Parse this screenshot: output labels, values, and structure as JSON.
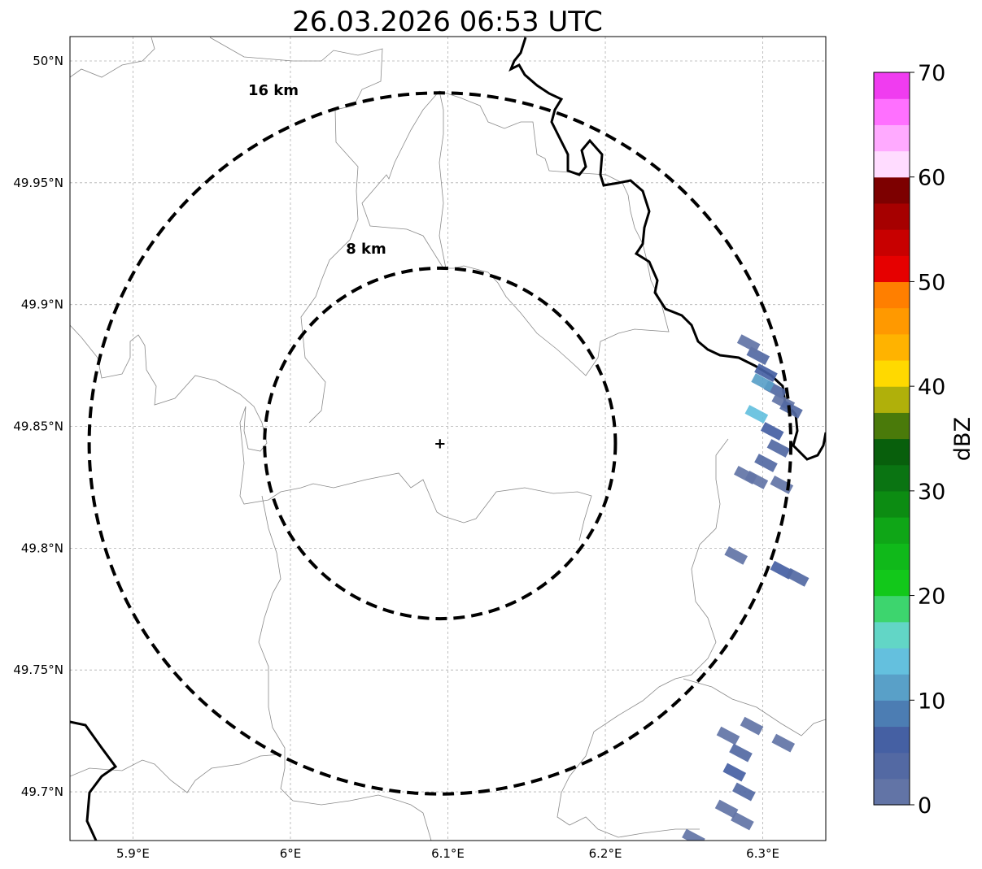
{
  "title": "26.03.2026 06:53 UTC",
  "map": {
    "lon_range": [
      5.86,
      6.34
    ],
    "lat_range": [
      49.68,
      50.01
    ],
    "radar_site": {
      "lon": 6.095,
      "lat": 49.843
    },
    "x_ticks": [
      {
        "value": 5.9,
        "label": "5.9°E"
      },
      {
        "value": 6.0,
        "label": "6°E"
      },
      {
        "value": 6.1,
        "label": "6.1°E"
      },
      {
        "value": 6.2,
        "label": "6.2°E"
      },
      {
        "value": 6.3,
        "label": "6.3°E"
      }
    ],
    "y_ticks": [
      {
        "value": 50.0,
        "label": "50°N"
      },
      {
        "value": 49.95,
        "label": "49.95°N"
      },
      {
        "value": 49.9,
        "label": "49.9°N"
      },
      {
        "value": 49.85,
        "label": "49.85°N"
      },
      {
        "value": 49.8,
        "label": "49.8°N"
      },
      {
        "value": 49.75,
        "label": "49.75°N"
      },
      {
        "value": 49.7,
        "label": "49.7°N"
      }
    ],
    "range_rings": [
      {
        "radius_km": 16,
        "label": "16 km"
      },
      {
        "radius_km": 8,
        "label": "8 km"
      }
    ]
  },
  "colorbar": {
    "label": "dBZ",
    "min": 0,
    "max": 70,
    "ticks": [
      "0",
      "10",
      "20",
      "30",
      "40",
      "50",
      "60",
      "70"
    ],
    "colors": [
      "#6274a6",
      "#5369a3",
      "#4560a3",
      "#4c7db3",
      "#59a0c8",
      "#64c0de",
      "#62d6c6",
      "#3dd56e",
      "#12c81a",
      "#10b91a",
      "#0fa617",
      "#0c8c12",
      "#0a7412",
      "#085f0c",
      "#4a7a0a",
      "#b0b00a",
      "#ffd900",
      "#ffb300",
      "#ff9900",
      "#ff7f00",
      "#e60000",
      "#c80000",
      "#a60000",
      "#7d0000",
      "#ffdcff",
      "#ffaaff",
      "#ff70ff",
      "#f03cf0"
    ]
  },
  "echoes": [
    {
      "lon": 6.297,
      "lat": 49.879,
      "dbz": 3
    },
    {
      "lon": 6.302,
      "lat": 49.872,
      "dbz": 6
    },
    {
      "lon": 6.308,
      "lat": 49.865,
      "dbz": 4
    },
    {
      "lon": 6.3,
      "lat": 49.868,
      "dbz": 12
    },
    {
      "lon": 6.313,
      "lat": 49.86,
      "dbz": 2
    },
    {
      "lon": 6.291,
      "lat": 49.884,
      "dbz": 2
    },
    {
      "lon": 6.318,
      "lat": 49.857,
      "dbz": 3
    },
    {
      "lon": 6.296,
      "lat": 49.855,
      "dbz": 13
    },
    {
      "lon": 6.306,
      "lat": 49.848,
      "dbz": 5
    },
    {
      "lon": 6.31,
      "lat": 49.841,
      "dbz": 3
    },
    {
      "lon": 6.302,
      "lat": 49.835,
      "dbz": 4
    },
    {
      "lon": 6.296,
      "lat": 49.828,
      "dbz": 2
    },
    {
      "lon": 6.312,
      "lat": 49.826,
      "dbz": 1
    },
    {
      "lon": 6.289,
      "lat": 49.83,
      "dbz": 1
    },
    {
      "lon": 6.283,
      "lat": 49.797,
      "dbz": 2
    },
    {
      "lon": 6.312,
      "lat": 49.791,
      "dbz": 6
    },
    {
      "lon": 6.322,
      "lat": 49.788,
      "dbz": 3
    },
    {
      "lon": 6.278,
      "lat": 49.723,
      "dbz": 2
    },
    {
      "lon": 6.286,
      "lat": 49.716,
      "dbz": 4
    },
    {
      "lon": 6.282,
      "lat": 49.708,
      "dbz": 5
    },
    {
      "lon": 6.288,
      "lat": 49.7,
      "dbz": 3
    },
    {
      "lon": 6.293,
      "lat": 49.727,
      "dbz": 1
    },
    {
      "lon": 6.313,
      "lat": 49.72,
      "dbz": 1
    },
    {
      "lon": 6.277,
      "lat": 49.693,
      "dbz": 2
    },
    {
      "lon": 6.287,
      "lat": 49.688,
      "dbz": 1
    },
    {
      "lon": 6.256,
      "lat": 49.681,
      "dbz": 2
    }
  ]
}
